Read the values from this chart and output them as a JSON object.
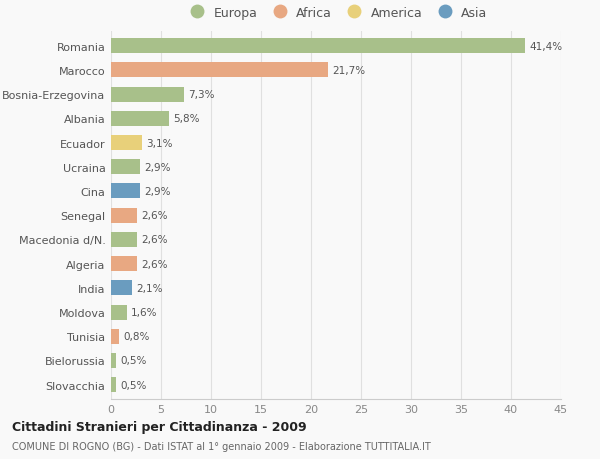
{
  "countries": [
    "Romania",
    "Marocco",
    "Bosnia-Erzegovina",
    "Albania",
    "Ecuador",
    "Ucraina",
    "Cina",
    "Senegal",
    "Macedonia d/N.",
    "Algeria",
    "India",
    "Moldova",
    "Tunisia",
    "Bielorussia",
    "Slovacchia"
  ],
  "values": [
    41.4,
    21.7,
    7.3,
    5.8,
    3.1,
    2.9,
    2.9,
    2.6,
    2.6,
    2.6,
    2.1,
    1.6,
    0.8,
    0.5,
    0.5
  ],
  "continents": [
    "Europa",
    "Africa",
    "Europa",
    "Europa",
    "America",
    "Europa",
    "Asia",
    "Africa",
    "Europa",
    "Africa",
    "Asia",
    "Europa",
    "Africa",
    "Europa",
    "Europa"
  ],
  "labels": [
    "41,4%",
    "21,7%",
    "7,3%",
    "5,8%",
    "3,1%",
    "2,9%",
    "2,9%",
    "2,6%",
    "2,6%",
    "2,6%",
    "2,1%",
    "1,6%",
    "0,8%",
    "0,5%",
    "0,5%"
  ],
  "continent_colors": {
    "Europa": "#a8c08a",
    "Africa": "#e8a882",
    "America": "#e8d07a",
    "Asia": "#6a9cbf"
  },
  "legend_order": [
    "Europa",
    "Africa",
    "America",
    "Asia"
  ],
  "title": "Cittadini Stranieri per Cittadinanza - 2009",
  "subtitle": "COMUNE DI ROGNO (BG) - Dati ISTAT al 1° gennaio 2009 - Elaborazione TUTTITALIA.IT",
  "xlim": [
    0,
    45
  ],
  "xticks": [
    0,
    5,
    10,
    15,
    20,
    25,
    30,
    35,
    40,
    45
  ],
  "background_color": "#f9f9f9",
  "grid_color": "#e0e0e0"
}
